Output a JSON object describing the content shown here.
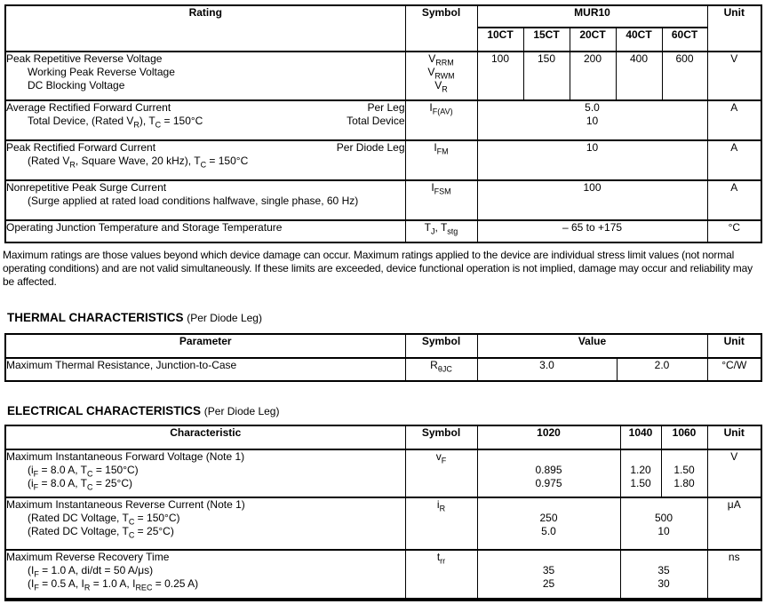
{
  "ratings_table": {
    "header": {
      "rating": "Rating",
      "symbol": "Symbol",
      "family": "MUR10",
      "models": [
        "10CT",
        "15CT",
        "20CT",
        "40CT",
        "60CT"
      ],
      "unit": "Unit"
    },
    "rows": {
      "reverse_voltage": {
        "lines": [
          "Peak Repetitive Reverse Voltage",
          "Working Peak Reverse Voltage",
          "DC Blocking Voltage"
        ],
        "symbols": [
          "V~RRM~",
          "V~RWM~",
          "V~R~"
        ],
        "values": [
          "100",
          "150",
          "200",
          "400",
          "600"
        ],
        "unit": "V"
      },
      "avg_forward_current": {
        "left_lines": [
          "Average Rectified Forward Current",
          "Total Device, (Rated V~R~), T~C~ = 150°C"
        ],
        "right_lines": [
          "Per Leg",
          "Total Device"
        ],
        "symbol": "I~F(AV)~",
        "values": [
          "5.0",
          "10"
        ],
        "unit": "A"
      },
      "peak_forward_current": {
        "line1": "Peak Rectified Forward Current",
        "line1_right": "Per Diode Leg",
        "line2": "(Rated V~R~, Square Wave, 20 kHz), T~C~ = 150°C",
        "symbol": "I~FM~",
        "value": "10",
        "unit": "A"
      },
      "surge_current": {
        "line1": "Nonrepetitive Peak Surge Current",
        "line2": "(Surge applied at rated load conditions halfwave, single phase, 60 Hz)",
        "symbol": "I~FSM~",
        "value": "100",
        "unit": "A"
      },
      "temperature": {
        "line1": "Operating Junction Temperature and Storage Temperature",
        "symbol": "T~J~, T~stg~",
        "value": "– 65 to +175",
        "unit": "°C"
      }
    },
    "footnote": "Maximum ratings are those values beyond which device damage can occur. Maximum ratings applied to the device are individual stress limit values (not normal operating conditions) and are not valid simultaneously. If these limits are exceeded, device functional operation is not implied, damage may occur and reliability may be affected."
  },
  "thermal": {
    "heading": "THERMAL CHARACTERISTICS ",
    "heading_suffix": "(Per Diode Leg)",
    "header": {
      "parameter": "Parameter",
      "symbol": "Symbol",
      "value": "Value",
      "unit": "Unit"
    },
    "row": {
      "parameter": "Maximum Thermal Resistance, Junction-to-Case",
      "symbol": "R~θJC~",
      "value_a": "3.0",
      "value_b": "2.0",
      "unit": "°C/W"
    }
  },
  "electrical": {
    "heading": "ELECTRICAL CHARACTERISTICS ",
    "heading_suffix": "(Per Diode Leg)",
    "header": {
      "characteristic": "Characteristic",
      "symbol": "Symbol",
      "col_1020": "1020",
      "col_1040": "1040",
      "col_1060": "1060",
      "unit": "Unit"
    },
    "rows": {
      "forward_voltage": {
        "lines": [
          "Maximum Instantaneous Forward Voltage (Note 1)",
          "(i~F~ = 8.0 A, T~C~ = 150°C)",
          "(i~F~ = 8.0 A, T~C~ = 25°C)"
        ],
        "symbol": "v~F~",
        "v1020": [
          "0.895",
          "0.975"
        ],
        "v1040": [
          "1.20",
          "1.50"
        ],
        "v1060": [
          "1.50",
          "1.80"
        ],
        "unit": "V"
      },
      "reverse_current": {
        "lines": [
          "Maximum Instantaneous Reverse Current (Note 1)",
          "(Rated DC Voltage, T~C~ = 150°C)",
          "(Rated DC Voltage, T~C~ = 25°C)"
        ],
        "symbol": "i~R~",
        "v1020": [
          "250",
          "5.0"
        ],
        "v1040_1060": [
          "500",
          "10"
        ],
        "unit": "μA"
      },
      "recovery_time": {
        "lines": [
          "Maximum Reverse Recovery Time",
          "(I~F~ = 1.0 A, di/dt = 50 A/μs)",
          "(I~F~ = 0.5 A, I~R~ = 1.0 A, I~REC~ = 0.25 A)"
        ],
        "symbol": "t~rr~",
        "v1020": [
          "35",
          "25"
        ],
        "v1040_1060": [
          "35",
          "30"
        ],
        "unit": "ns"
      }
    }
  }
}
